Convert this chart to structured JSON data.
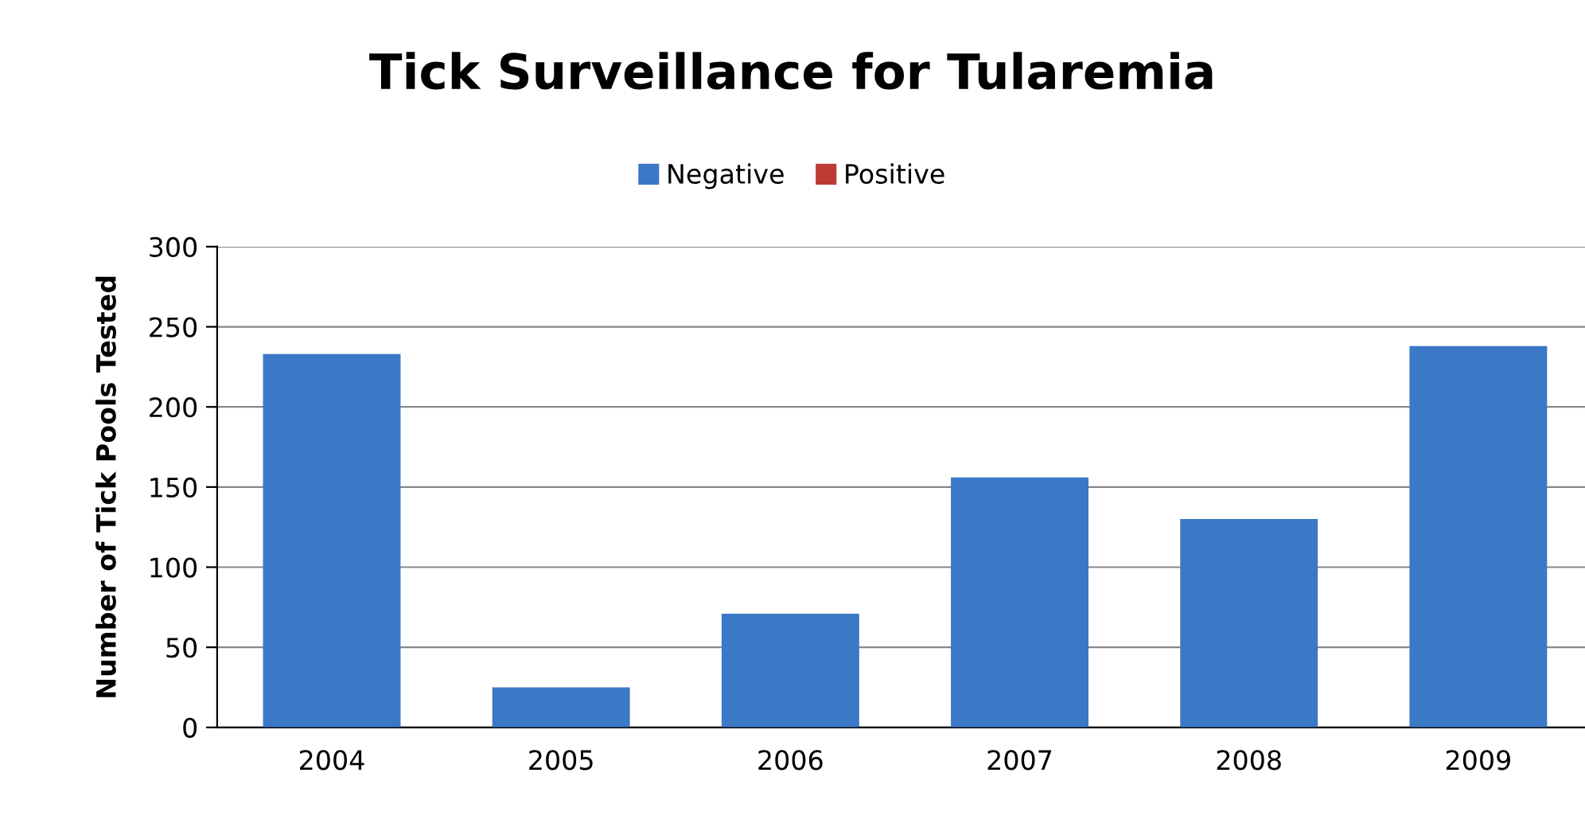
{
  "chart_data": {
    "type": "bar",
    "title": "Tick Surveillance for Tularemia",
    "ylabel": "Number of Tick Pools Tested",
    "categories": [
      "2004",
      "2005",
      "2006",
      "2007",
      "2008",
      "2009"
    ],
    "series": [
      {
        "name": "Negative",
        "color": "#3b78c6",
        "values": [
          233,
          25,
          71,
          156,
          130,
          238
        ]
      },
      {
        "name": "Positive",
        "color": "#be3a34",
        "values": [
          0,
          0,
          0,
          0,
          0,
          0
        ]
      }
    ],
    "ylim": [
      0,
      300
    ],
    "yticks": [
      0,
      50,
      100,
      150,
      200,
      250,
      300
    ],
    "grid": "y",
    "legend": "top"
  }
}
